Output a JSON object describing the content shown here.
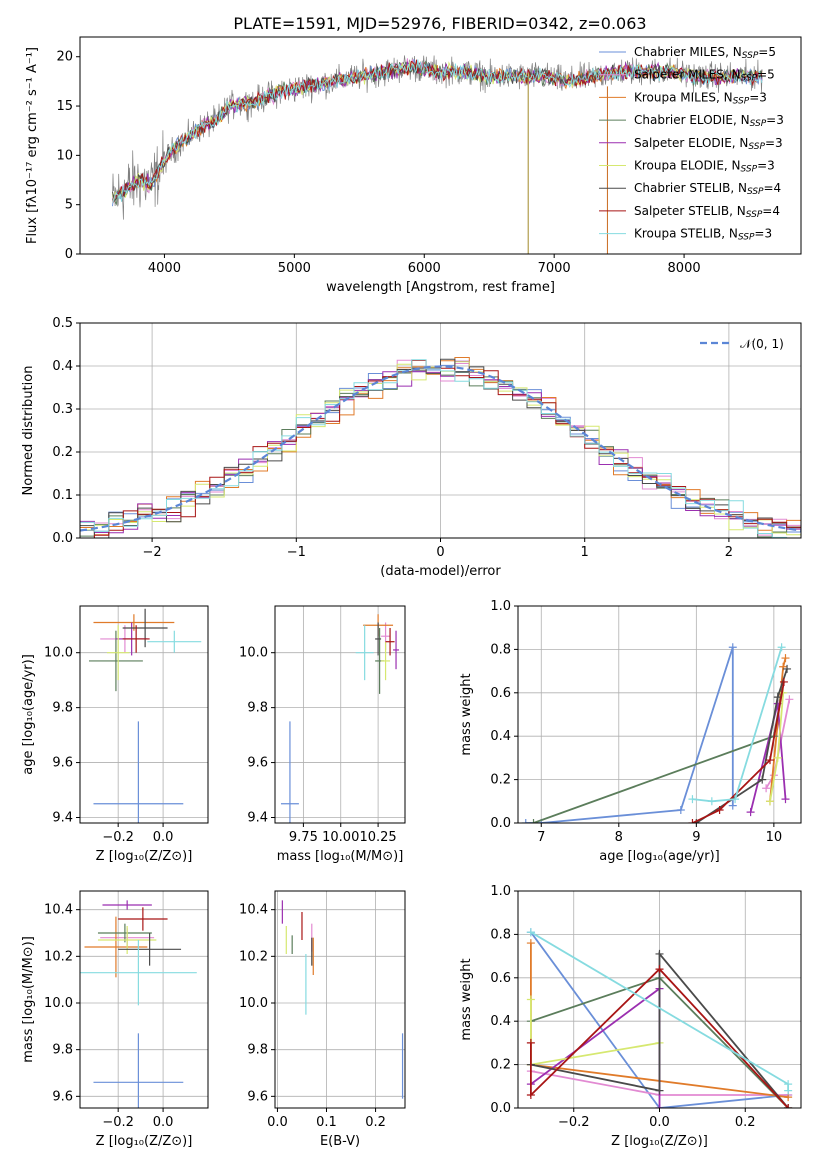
{
  "title": "PLATE=1591, MJD=52976, FIBERID=0342, z=0.063",
  "colors": [
    "#6a8fd8",
    "#e28ad2",
    "#e07b2a",
    "#5b7d5b",
    "#9b2fb0",
    "#d6e870",
    "#4a4a4a",
    "#a81515",
    "#86dbe0"
  ],
  "chart_data": [
    {
      "type": "line",
      "title": "PLATE=1591, MJD=52976, FIBERID=0342, z=0.063",
      "xlabel": "wavelength [Angstrom, rest frame]",
      "ylabel": "Flux [fλ10⁻¹⁷ erg cm⁻² s⁻¹ A⁻¹]",
      "xlim": [
        3350,
        8900
      ],
      "ylim": [
        0,
        22
      ],
      "xticks": [
        4000,
        5000,
        6000,
        7000,
        8000
      ],
      "yticks": [
        0,
        5,
        10,
        15,
        20
      ],
      "grid": false,
      "legend_position": "right",
      "continuum": {
        "x": [
          3600,
          3700,
          3800,
          3900,
          4000,
          4100,
          4200,
          4300,
          4400,
          4500,
          4700,
          4900,
          5100,
          5300,
          5500,
          5700,
          5900,
          6100,
          6300,
          6500,
          6700,
          6900,
          7100,
          7300,
          7500,
          7700,
          7900,
          8100,
          8300,
          8500,
          8600
        ],
        "y": [
          5.5,
          6.5,
          7.5,
          7.0,
          9.5,
          11.0,
          12.0,
          13.0,
          13.5,
          15.0,
          15.5,
          16.5,
          17.0,
          17.5,
          18.0,
          18.5,
          19.0,
          18.5,
          18.5,
          18.0,
          18.0,
          18.0,
          17.5,
          18.0,
          18.5,
          18.5,
          18.5,
          18.0,
          18.0,
          18.0,
          18.0
        ]
      },
      "legend": [
        "Chabrier MILES, N$_{SSP}$=5",
        "Salpeter MILES, N$_{SSP}$=5",
        "Kroupa MILES, N$_{SSP}$=3",
        "Chabrier ELODIE, N$_{SSP}$=3",
        "Salpeter ELODIE, N$_{SSP}$=3",
        "Kroupa ELODIE, N$_{SSP}$=3",
        "Chabrier STELIB, N$_{SSP}$=4",
        "Salpeter STELIB, N$_{SSP}$=4",
        "Kroupa STELIB, N$_{SSP}$=3"
      ]
    },
    {
      "type": "line",
      "xlabel": "(data-model)/error",
      "ylabel": "Normed distribution",
      "xlim": [
        -2.5,
        2.5
      ],
      "ylim": [
        0,
        0.5
      ],
      "xticks": [
        -2,
        -1,
        0,
        1,
        2
      ],
      "yticks": [
        0.0,
        0.1,
        0.2,
        0.3,
        0.4,
        0.5
      ],
      "grid": true,
      "legend": [
        "𝒩(0, 1)"
      ],
      "legend_position": "top-right"
    },
    {
      "type": "scatter",
      "xlabel": "Z [log₁₀(Z/Z⊙)]",
      "ylabel": "age  [log₁₀(age/yr)]",
      "xlim": [
        -0.37,
        0.2
      ],
      "ylim": [
        9.38,
        10.17
      ],
      "xticks": [
        -0.2,
        0.0
      ],
      "yticks": [
        9.4,
        9.6,
        9.8,
        10.0
      ],
      "grid": true,
      "points": [
        {
          "x": -0.11,
          "y": 9.45,
          "xerr": 0.2,
          "yerr": 0.3
        },
        {
          "x": -0.17,
          "y": 10.05,
          "xerr": 0.11,
          "yerr": 0.05
        },
        {
          "x": -0.13,
          "y": 10.11,
          "xerr": 0.18,
          "yerr": 0.03
        },
        {
          "x": -0.21,
          "y": 9.97,
          "xerr": 0.12,
          "yerr": 0.11
        },
        {
          "x": -0.14,
          "y": 10.05,
          "xerr": 0.07,
          "yerr": 0.06
        },
        {
          "x": -0.2,
          "y": 10.0,
          "xerr": 0.05,
          "yerr": 0.1
        },
        {
          "x": -0.08,
          "y": 10.09,
          "xerr": 0.1,
          "yerr": 0.07
        },
        {
          "x": -0.12,
          "y": 10.05,
          "xerr": 0.06,
          "yerr": 0.05
        },
        {
          "x": 0.05,
          "y": 10.04,
          "xerr": 0.12,
          "yerr": 0.04
        }
      ]
    },
    {
      "type": "scatter",
      "xlabel": "mass [log₁₀(M/M⊙)]",
      "xlim": [
        9.56,
        10.43
      ],
      "ylim": [
        9.38,
        10.17
      ],
      "xticks": [
        9.75,
        10.0,
        10.25
      ],
      "yticks": [
        9.4,
        9.6,
        9.8,
        10.0
      ],
      "grid": true,
      "points": [
        {
          "x": 9.66,
          "y": 9.45,
          "xerr": 0.06,
          "yerr": 0.3
        },
        {
          "x": 10.3,
          "y": 10.06,
          "xerr": 0.03,
          "yerr": 0.05
        },
        {
          "x": 10.25,
          "y": 10.1,
          "xerr": 0.1,
          "yerr": 0.04
        },
        {
          "x": 10.26,
          "y": 9.97,
          "xerr": 0.03,
          "yerr": 0.12
        },
        {
          "x": 10.37,
          "y": 10.01,
          "xerr": 0.02,
          "yerr": 0.07
        },
        {
          "x": 10.3,
          "y": 9.97,
          "xerr": 0.03,
          "yerr": 0.07
        },
        {
          "x": 10.25,
          "y": 10.05,
          "xerr": 0.02,
          "yerr": 0.06
        },
        {
          "x": 10.33,
          "y": 10.04,
          "xerr": 0.03,
          "yerr": 0.05
        },
        {
          "x": 10.16,
          "y": 10.0,
          "xerr": 0.06,
          "yerr": 0.1
        }
      ]
    },
    {
      "type": "line",
      "xlabel": "age  [log₁₀(age/yr)]",
      "ylabel": "mass weight",
      "xlim": [
        6.7,
        10.35
      ],
      "ylim": [
        0,
        1
      ],
      "xticks": [
        7,
        8,
        9,
        10
      ],
      "yticks": [
        0.0,
        0.2,
        0.4,
        0.6,
        0.8,
        1.0
      ],
      "grid": true,
      "series": [
        {
          "x": [
            6.8,
            7.0,
            8.8,
            9.47,
            9.47
          ],
          "y": [
            0.0,
            0.0,
            0.06,
            0.81,
            0.08
          ]
        },
        {
          "x": [
            9.9,
            10.0,
            10.2
          ],
          "y": [
            0.16,
            0.22,
            0.57
          ]
        },
        {
          "x": [
            9.95,
            10.12,
            10.15
          ],
          "y": [
            0.1,
            0.72,
            0.76
          ]
        },
        {
          "x": [
            6.9,
            10.0,
            10.1
          ],
          "y": [
            0.0,
            0.4,
            0.6
          ]
        },
        {
          "x": [
            9.7,
            10.05,
            10.15
          ],
          "y": [
            0.05,
            0.55,
            0.11
          ]
        },
        {
          "x": [
            9.95,
            10.05,
            10.12
          ],
          "y": [
            0.1,
            0.3,
            0.6
          ]
        },
        {
          "x": [
            9.0,
            9.85,
            10.05,
            10.17
          ],
          "y": [
            0.0,
            0.2,
            0.58,
            0.71
          ]
        },
        {
          "x": [
            8.95,
            9.3,
            9.95,
            10.13
          ],
          "y": [
            0.0,
            0.06,
            0.29,
            0.65
          ]
        },
        {
          "x": [
            8.95,
            9.2,
            9.5,
            10.1
          ],
          "y": [
            0.11,
            0.1,
            0.11,
            0.81
          ]
        }
      ]
    },
    {
      "type": "scatter",
      "xlabel": "Z [log₁₀(Z/Z⊙)]",
      "ylabel": "mass [log₁₀(M/M⊙)]",
      "xlim": [
        -0.37,
        0.2
      ],
      "ylim": [
        9.55,
        10.48
      ],
      "xticks": [
        -0.2,
        0.0
      ],
      "yticks": [
        9.6,
        9.8,
        10.0,
        10.2,
        10.4
      ],
      "grid": true,
      "points": [
        {
          "x": -0.11,
          "y": 9.66,
          "xerr": 0.2,
          "yerr": 0.21
        },
        {
          "x": -0.16,
          "y": 10.28,
          "xerr": 0.12,
          "yerr": 0.04
        },
        {
          "x": -0.21,
          "y": 10.24,
          "xerr": 0.14,
          "yerr": 0.13
        },
        {
          "x": -0.17,
          "y": 10.3,
          "xerr": 0.12,
          "yerr": 0.04
        },
        {
          "x": -0.16,
          "y": 10.42,
          "xerr": 0.11,
          "yerr": 0.02
        },
        {
          "x": -0.16,
          "y": 10.27,
          "xerr": 0.13,
          "yerr": 0.06
        },
        {
          "x": -0.06,
          "y": 10.23,
          "xerr": 0.14,
          "yerr": 0.07
        },
        {
          "x": -0.09,
          "y": 10.36,
          "xerr": 0.11,
          "yerr": 0.05
        },
        {
          "x": -0.11,
          "y": 10.13,
          "xerr": 0.26,
          "yerr": 0.14
        }
      ]
    },
    {
      "type": "scatter",
      "xlabel": "E(B-V)",
      "xlim": [
        -0.005,
        0.26
      ],
      "ylim": [
        9.55,
        10.48
      ],
      "xticks": [
        0.0,
        0.1,
        0.2
      ],
      "yticks": [
        9.6,
        9.8,
        10.0,
        10.2,
        10.4
      ],
      "grid": true,
      "points": [
        {
          "x": 0.255,
          "y": 9.73,
          "xerr": 0.0,
          "yerr": 0.14
        },
        {
          "x": 0.07,
          "y": 10.28,
          "xerr": 0.0,
          "yerr": 0.06
        },
        {
          "x": 0.073,
          "y": 10.2,
          "xerr": 0.0,
          "yerr": 0.08
        },
        {
          "x": 0.03,
          "y": 10.25,
          "xerr": 0.0,
          "yerr": 0.04
        },
        {
          "x": 0.01,
          "y": 10.39,
          "xerr": 0.0,
          "yerr": 0.05
        },
        {
          "x": 0.018,
          "y": 10.27,
          "xerr": 0.0,
          "yerr": 0.06
        },
        {
          "x": 0.07,
          "y": 10.22,
          "xerr": 0.0,
          "yerr": 0.06
        },
        {
          "x": 0.05,
          "y": 10.33,
          "xerr": 0.0,
          "yerr": 0.06
        },
        {
          "x": 0.058,
          "y": 10.08,
          "xerr": 0.0,
          "yerr": 0.13
        }
      ]
    },
    {
      "type": "line",
      "xlabel": "Z [log₁₀(Z/Z⊙)]",
      "ylabel": "mass weight",
      "xlim": [
        -0.33,
        0.33
      ],
      "ylim": [
        0,
        1
      ],
      "xticks": [
        -0.2,
        0.0,
        0.2
      ],
      "yticks": [
        0.0,
        0.2,
        0.4,
        0.6,
        0.8,
        1.0
      ],
      "grid": true,
      "series": [
        {
          "x": [
            -0.3,
            0.0,
            0.3
          ],
          "y": [
            0.81,
            0.0,
            0.06
          ]
        },
        {
          "x": [
            -0.3,
            0.0,
            0.3
          ],
          "y": [
            0.17,
            0.06,
            0.06
          ]
        },
        {
          "x": [
            -0.3,
            -0.3,
            0.3
          ],
          "y": [
            0.76,
            0.2,
            0.05
          ]
        },
        {
          "x": [
            -0.3,
            0.0,
            0.3
          ],
          "y": [
            0.4,
            0.6,
            0.0
          ]
        },
        {
          "x": [
            -0.3,
            0.0,
            0.0
          ],
          "y": [
            0.11,
            0.55,
            0.0
          ]
        },
        {
          "x": [
            -0.3,
            -0.3,
            0.0
          ],
          "y": [
            0.5,
            0.2,
            0.3
          ]
        },
        {
          "x": [
            -0.3,
            0.0,
            0.0,
            0.3
          ],
          "y": [
            0.2,
            0.08,
            0.71,
            0.0
          ]
        },
        {
          "x": [
            -0.3,
            -0.3,
            0.0,
            0.3
          ],
          "y": [
            0.3,
            0.06,
            0.64,
            0.0
          ]
        },
        {
          "x": [
            -0.3,
            0.3,
            0.3
          ],
          "y": [
            0.81,
            0.11,
            0.08
          ]
        }
      ]
    }
  ]
}
